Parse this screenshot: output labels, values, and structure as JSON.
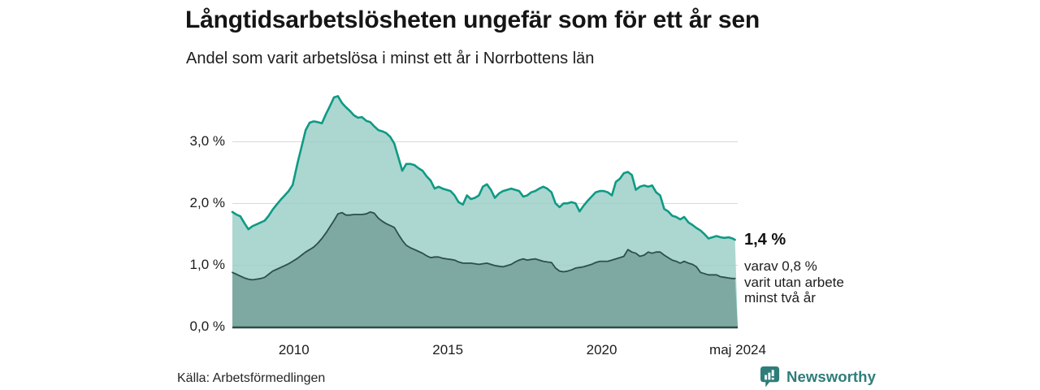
{
  "header": {
    "title": "Långtidsarbetslösheten ungefär som för ett år sen",
    "subtitle": "Andel som varit arbetslösa i minst ett år i Norrbottens län"
  },
  "annotation": {
    "value_label": "1,4 %",
    "detail_lines": [
      "varav 0,8 %",
      "varit utan arbete",
      "minst två år"
    ]
  },
  "footer": {
    "source": "Källa: Arbetsförmedlingen",
    "brand": "Newsworthy",
    "brand_icon": "newsworthy-speech-bubble-bars-icon"
  },
  "colors": {
    "background": "#ffffff",
    "text": "#1a1a1a",
    "gridline": "#d9d9d9",
    "axis_line": "#2f4b46",
    "series_total_stroke": "#0f9a84",
    "series_total_fill": "#abd7d0",
    "series_two_years_stroke": "#2e4f49",
    "series_two_years_fill": "#7ea9a2",
    "brand_teal": "#2e7d7a"
  },
  "chart_data": {
    "type": "area",
    "title": "Långtidsarbetslösheten ungefär som för ett år sen",
    "subtitle": "Andel som varit arbetslösa i minst ett år i Norrbottens län",
    "source": "Källa: Arbetsförmedlingen",
    "grid": "horizontal",
    "legend_position": "right-annotation",
    "x_range": [
      2008.0,
      2024.42
    ],
    "ylim": [
      0,
      3.85
    ],
    "y_ticks": [
      {
        "value": 0,
        "label": "0,0 %"
      },
      {
        "value": 1,
        "label": "1,0 %"
      },
      {
        "value": 2,
        "label": "2,0 %"
      },
      {
        "value": 3,
        "label": "3,0 %"
      }
    ],
    "x_ticks": [
      {
        "value": 2010,
        "label": "2010"
      },
      {
        "value": 2015,
        "label": "2015"
      },
      {
        "value": 2020,
        "label": "2020"
      },
      {
        "value": 2024.42,
        "label": "maj 2024"
      }
    ],
    "series": [
      {
        "name": "Arbetslösa minst ett år",
        "latest_value_label": "1,4 %",
        "stroke": "#0f9a84",
        "stroke_width": 2.6,
        "fill": "rgba(150,205,196,0.8)",
        "points": [
          [
            2008.0,
            1.86
          ],
          [
            2008.13,
            1.82
          ],
          [
            2008.26,
            1.79
          ],
          [
            2008.39,
            1.68
          ],
          [
            2008.52,
            1.58
          ],
          [
            2008.65,
            1.63
          ],
          [
            2008.79,
            1.66
          ],
          [
            2008.92,
            1.69
          ],
          [
            2009.05,
            1.72
          ],
          [
            2009.18,
            1.8
          ],
          [
            2009.31,
            1.9
          ],
          [
            2009.44,
            1.98
          ],
          [
            2009.57,
            2.06
          ],
          [
            2009.7,
            2.13
          ],
          [
            2009.83,
            2.2
          ],
          [
            2009.96,
            2.3
          ],
          [
            2010.12,
            2.66
          ],
          [
            2010.25,
            2.92
          ],
          [
            2010.38,
            3.19
          ],
          [
            2010.51,
            3.31
          ],
          [
            2010.64,
            3.33
          ],
          [
            2010.77,
            3.32
          ],
          [
            2010.91,
            3.3
          ],
          [
            2011.04,
            3.45
          ],
          [
            2011.17,
            3.58
          ],
          [
            2011.3,
            3.72
          ],
          [
            2011.43,
            3.74
          ],
          [
            2011.56,
            3.63
          ],
          [
            2011.69,
            3.56
          ],
          [
            2011.82,
            3.5
          ],
          [
            2011.95,
            3.43
          ],
          [
            2012.08,
            3.39
          ],
          [
            2012.21,
            3.4
          ],
          [
            2012.35,
            3.34
          ],
          [
            2012.48,
            3.32
          ],
          [
            2012.61,
            3.25
          ],
          [
            2012.74,
            3.19
          ],
          [
            2012.87,
            3.17
          ],
          [
            2013.0,
            3.14
          ],
          [
            2013.13,
            3.08
          ],
          [
            2013.26,
            2.97
          ],
          [
            2013.39,
            2.75
          ],
          [
            2013.52,
            2.53
          ],
          [
            2013.65,
            2.64
          ],
          [
            2013.78,
            2.64
          ],
          [
            2013.92,
            2.62
          ],
          [
            2014.05,
            2.57
          ],
          [
            2014.18,
            2.53
          ],
          [
            2014.31,
            2.44
          ],
          [
            2014.44,
            2.37
          ],
          [
            2014.57,
            2.24
          ],
          [
            2014.7,
            2.27
          ],
          [
            2014.83,
            2.24
          ],
          [
            2014.96,
            2.22
          ],
          [
            2015.09,
            2.2
          ],
          [
            2015.22,
            2.13
          ],
          [
            2015.35,
            2.02
          ],
          [
            2015.49,
            1.98
          ],
          [
            2015.62,
            2.13
          ],
          [
            2015.75,
            2.07
          ],
          [
            2015.88,
            2.09
          ],
          [
            2016.01,
            2.13
          ],
          [
            2016.14,
            2.27
          ],
          [
            2016.27,
            2.31
          ],
          [
            2016.4,
            2.22
          ],
          [
            2016.53,
            2.09
          ],
          [
            2016.66,
            2.16
          ],
          [
            2016.79,
            2.2
          ],
          [
            2016.93,
            2.22
          ],
          [
            2017.06,
            2.24
          ],
          [
            2017.19,
            2.22
          ],
          [
            2017.32,
            2.2
          ],
          [
            2017.45,
            2.11
          ],
          [
            2017.58,
            2.13
          ],
          [
            2017.71,
            2.18
          ],
          [
            2017.84,
            2.2
          ],
          [
            2017.97,
            2.24
          ],
          [
            2018.1,
            2.27
          ],
          [
            2018.23,
            2.24
          ],
          [
            2018.37,
            2.18
          ],
          [
            2018.5,
            2.0
          ],
          [
            2018.63,
            1.94
          ],
          [
            2018.76,
            2.0
          ],
          [
            2018.89,
            2.0
          ],
          [
            2019.02,
            2.02
          ],
          [
            2019.15,
            2.0
          ],
          [
            2019.28,
            1.87
          ],
          [
            2019.41,
            1.96
          ],
          [
            2019.54,
            2.04
          ],
          [
            2019.67,
            2.11
          ],
          [
            2019.8,
            2.18
          ],
          [
            2019.94,
            2.2
          ],
          [
            2020.07,
            2.2
          ],
          [
            2020.2,
            2.18
          ],
          [
            2020.33,
            2.13
          ],
          [
            2020.46,
            2.35
          ],
          [
            2020.59,
            2.4
          ],
          [
            2020.72,
            2.49
          ],
          [
            2020.85,
            2.51
          ],
          [
            2020.98,
            2.46
          ],
          [
            2021.11,
            2.22
          ],
          [
            2021.24,
            2.27
          ],
          [
            2021.38,
            2.29
          ],
          [
            2021.51,
            2.27
          ],
          [
            2021.64,
            2.29
          ],
          [
            2021.77,
            2.18
          ],
          [
            2021.9,
            2.13
          ],
          [
            2022.03,
            1.91
          ],
          [
            2022.16,
            1.87
          ],
          [
            2022.29,
            1.8
          ],
          [
            2022.42,
            1.78
          ],
          [
            2022.55,
            1.74
          ],
          [
            2022.68,
            1.78
          ],
          [
            2022.82,
            1.69
          ],
          [
            2022.95,
            1.65
          ],
          [
            2023.08,
            1.6
          ],
          [
            2023.21,
            1.56
          ],
          [
            2023.34,
            1.5
          ],
          [
            2023.47,
            1.43
          ],
          [
            2023.6,
            1.45
          ],
          [
            2023.73,
            1.47
          ],
          [
            2023.86,
            1.45
          ],
          [
            2023.99,
            1.44
          ],
          [
            2024.12,
            1.45
          ],
          [
            2024.25,
            1.43
          ],
          [
            2024.33,
            1.41
          ]
        ]
      },
      {
        "name": "varav utan arbete minst två år",
        "latest_value_label": "0,8 %",
        "stroke": "#2e4f49",
        "stroke_width": 1.8,
        "fill": "rgba(115,158,151,0.8)",
        "points": [
          [
            2008.0,
            0.88
          ],
          [
            2008.13,
            0.85
          ],
          [
            2008.26,
            0.82
          ],
          [
            2008.39,
            0.79
          ],
          [
            2008.52,
            0.77
          ],
          [
            2008.65,
            0.76
          ],
          [
            2008.79,
            0.77
          ],
          [
            2008.92,
            0.78
          ],
          [
            2009.05,
            0.8
          ],
          [
            2009.18,
            0.85
          ],
          [
            2009.31,
            0.9
          ],
          [
            2009.44,
            0.93
          ],
          [
            2009.57,
            0.96
          ],
          [
            2009.7,
            0.99
          ],
          [
            2009.83,
            1.02
          ],
          [
            2009.96,
            1.06
          ],
          [
            2010.12,
            1.11
          ],
          [
            2010.25,
            1.16
          ],
          [
            2010.38,
            1.21
          ],
          [
            2010.51,
            1.25
          ],
          [
            2010.64,
            1.29
          ],
          [
            2010.77,
            1.35
          ],
          [
            2010.91,
            1.43
          ],
          [
            2011.04,
            1.52
          ],
          [
            2011.17,
            1.62
          ],
          [
            2011.3,
            1.72
          ],
          [
            2011.43,
            1.83
          ],
          [
            2011.56,
            1.85
          ],
          [
            2011.69,
            1.81
          ],
          [
            2011.82,
            1.81
          ],
          [
            2011.95,
            1.82
          ],
          [
            2012.08,
            1.82
          ],
          [
            2012.21,
            1.82
          ],
          [
            2012.35,
            1.83
          ],
          [
            2012.48,
            1.86
          ],
          [
            2012.61,
            1.84
          ],
          [
            2012.74,
            1.76
          ],
          [
            2012.87,
            1.71
          ],
          [
            2013.0,
            1.67
          ],
          [
            2013.13,
            1.64
          ],
          [
            2013.26,
            1.61
          ],
          [
            2013.39,
            1.5
          ],
          [
            2013.52,
            1.4
          ],
          [
            2013.65,
            1.32
          ],
          [
            2013.78,
            1.28
          ],
          [
            2013.92,
            1.25
          ],
          [
            2014.05,
            1.22
          ],
          [
            2014.18,
            1.19
          ],
          [
            2014.31,
            1.15
          ],
          [
            2014.44,
            1.12
          ],
          [
            2014.57,
            1.13
          ],
          [
            2014.7,
            1.13
          ],
          [
            2014.83,
            1.11
          ],
          [
            2014.96,
            1.1
          ],
          [
            2015.09,
            1.09
          ],
          [
            2015.22,
            1.08
          ],
          [
            2015.35,
            1.05
          ],
          [
            2015.49,
            1.03
          ],
          [
            2015.62,
            1.03
          ],
          [
            2015.75,
            1.03
          ],
          [
            2015.88,
            1.02
          ],
          [
            2016.01,
            1.01
          ],
          [
            2016.14,
            1.02
          ],
          [
            2016.27,
            1.03
          ],
          [
            2016.4,
            1.01
          ],
          [
            2016.53,
            0.99
          ],
          [
            2016.66,
            0.98
          ],
          [
            2016.79,
            0.97
          ],
          [
            2016.93,
            0.99
          ],
          [
            2017.06,
            1.01
          ],
          [
            2017.19,
            1.05
          ],
          [
            2017.32,
            1.08
          ],
          [
            2017.45,
            1.1
          ],
          [
            2017.58,
            1.08
          ],
          [
            2017.71,
            1.09
          ],
          [
            2017.84,
            1.1
          ],
          [
            2017.97,
            1.08
          ],
          [
            2018.1,
            1.06
          ],
          [
            2018.23,
            1.05
          ],
          [
            2018.37,
            1.04
          ],
          [
            2018.5,
            0.95
          ],
          [
            2018.63,
            0.9
          ],
          [
            2018.76,
            0.89
          ],
          [
            2018.89,
            0.9
          ],
          [
            2019.02,
            0.92
          ],
          [
            2019.15,
            0.95
          ],
          [
            2019.28,
            0.96
          ],
          [
            2019.41,
            0.97
          ],
          [
            2019.54,
            0.99
          ],
          [
            2019.67,
            1.01
          ],
          [
            2019.8,
            1.04
          ],
          [
            2019.94,
            1.06
          ],
          [
            2020.07,
            1.06
          ],
          [
            2020.2,
            1.06
          ],
          [
            2020.33,
            1.08
          ],
          [
            2020.46,
            1.1
          ],
          [
            2020.59,
            1.12
          ],
          [
            2020.72,
            1.14
          ],
          [
            2020.85,
            1.25
          ],
          [
            2020.98,
            1.21
          ],
          [
            2021.11,
            1.19
          ],
          [
            2021.24,
            1.14
          ],
          [
            2021.38,
            1.16
          ],
          [
            2021.51,
            1.21
          ],
          [
            2021.64,
            1.19
          ],
          [
            2021.77,
            1.21
          ],
          [
            2021.9,
            1.21
          ],
          [
            2022.03,
            1.16
          ],
          [
            2022.16,
            1.12
          ],
          [
            2022.29,
            1.08
          ],
          [
            2022.42,
            1.06
          ],
          [
            2022.55,
            1.03
          ],
          [
            2022.68,
            1.06
          ],
          [
            2022.82,
            1.03
          ],
          [
            2022.95,
            1.01
          ],
          [
            2023.08,
            0.97
          ],
          [
            2023.21,
            0.88
          ],
          [
            2023.34,
            0.86
          ],
          [
            2023.47,
            0.84
          ],
          [
            2023.6,
            0.84
          ],
          [
            2023.73,
            0.84
          ],
          [
            2023.86,
            0.81
          ],
          [
            2023.99,
            0.8
          ],
          [
            2024.12,
            0.79
          ],
          [
            2024.25,
            0.78
          ],
          [
            2024.33,
            0.78
          ]
        ]
      }
    ]
  }
}
